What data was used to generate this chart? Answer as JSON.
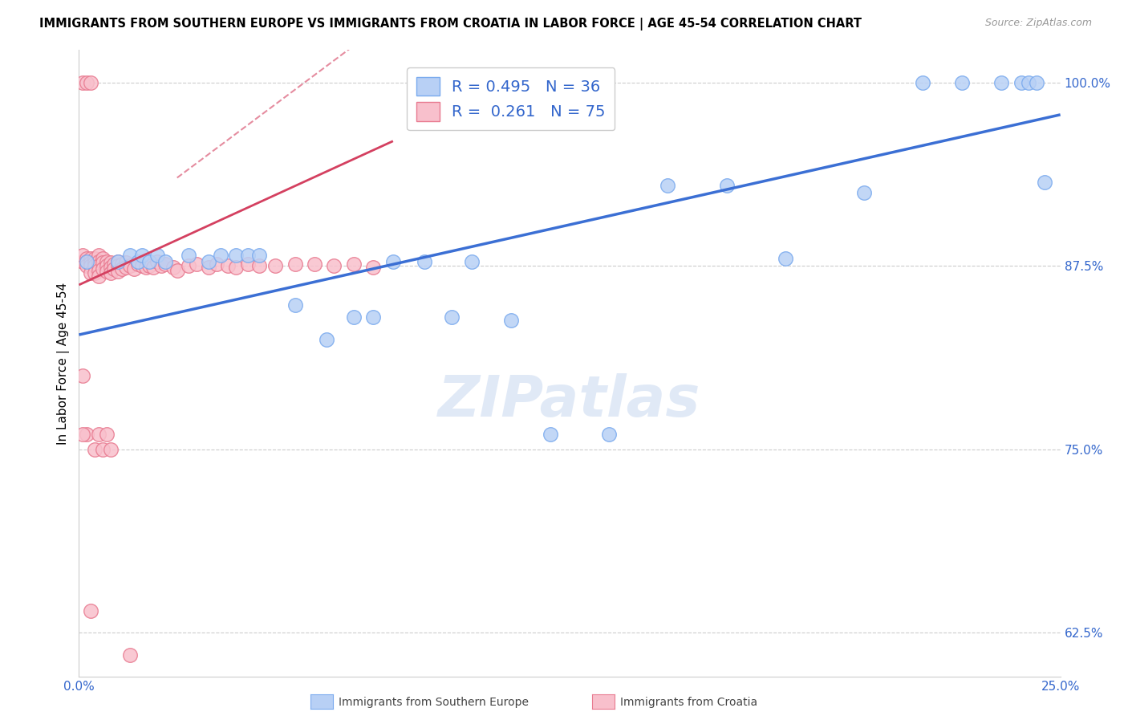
{
  "title": "IMMIGRANTS FROM SOUTHERN EUROPE VS IMMIGRANTS FROM CROATIA IN LABOR FORCE | AGE 45-54 CORRELATION CHART",
  "source": "Source: ZipAtlas.com",
  "ylabel": "In Labor Force | Age 45-54",
  "xmin": 0.0,
  "xmax": 0.25,
  "ymin": 0.595,
  "ymax": 1.022,
  "yticks": [
    0.625,
    0.75,
    0.875,
    1.0
  ],
  "ytick_labels": [
    "62.5%",
    "75.0%",
    "87.5%",
    "100.0%"
  ],
  "xticks": [
    0.0,
    0.05,
    0.1,
    0.15,
    0.2,
    0.25
  ],
  "xtick_labels": [
    "0.0%",
    "",
    "",
    "",
    "",
    "25.0%"
  ],
  "legend_blue_r": "R = 0.495",
  "legend_blue_n": "N = 36",
  "legend_pink_r": "R =  0.261",
  "legend_pink_n": "N = 75",
  "legend_blue_label": "Immigrants from Southern Europe",
  "legend_pink_label": "Immigrants from Croatia",
  "blue_dot_color": "#b8d0f5",
  "blue_edge_color": "#7aaaee",
  "pink_dot_color": "#f8c0cc",
  "pink_edge_color": "#e87a90",
  "blue_line_color": "#3b6fd4",
  "pink_line_color": "#d44060",
  "grid_color": "#cccccc",
  "background_color": "#ffffff",
  "watermark": "ZIPatlas",
  "watermark_color": "#c8d8f0",
  "blue_line_x0": 0.0,
  "blue_line_y0": 0.828,
  "blue_line_x1": 0.25,
  "blue_line_y1": 0.978,
  "pink_line_x0": 0.0,
  "pink_line_y0": 0.862,
  "pink_line_x1": 0.08,
  "pink_line_y1": 0.96,
  "blue_x": [
    0.002,
    0.01,
    0.013,
    0.015,
    0.016,
    0.018,
    0.02,
    0.022,
    0.028,
    0.033,
    0.036,
    0.04,
    0.043,
    0.046,
    0.055,
    0.063,
    0.07,
    0.075,
    0.08,
    0.088,
    0.095,
    0.1,
    0.11,
    0.12,
    0.135,
    0.15,
    0.165,
    0.18,
    0.2,
    0.215,
    0.225,
    0.235,
    0.24,
    0.242,
    0.244,
    0.246
  ],
  "blue_y": [
    0.878,
    0.878,
    0.882,
    0.878,
    0.882,
    0.878,
    0.882,
    0.878,
    0.882,
    0.878,
    0.882,
    0.882,
    0.882,
    0.882,
    0.848,
    0.825,
    0.84,
    0.84,
    0.878,
    0.878,
    0.84,
    0.878,
    0.838,
    0.76,
    0.76,
    0.93,
    0.93,
    0.88,
    0.925,
    1.0,
    1.0,
    1.0,
    1.0,
    1.0,
    1.0,
    0.932
  ],
  "pink_x": [
    0.001,
    0.001,
    0.001,
    0.002,
    0.002,
    0.002,
    0.002,
    0.003,
    0.003,
    0.003,
    0.003,
    0.003,
    0.004,
    0.004,
    0.004,
    0.004,
    0.005,
    0.005,
    0.005,
    0.005,
    0.005,
    0.006,
    0.006,
    0.006,
    0.007,
    0.007,
    0.007,
    0.008,
    0.008,
    0.008,
    0.009,
    0.009,
    0.01,
    0.01,
    0.01,
    0.011,
    0.011,
    0.012,
    0.012,
    0.013,
    0.014,
    0.015,
    0.016,
    0.017,
    0.018,
    0.019,
    0.02,
    0.021,
    0.022,
    0.024,
    0.025,
    0.028,
    0.03,
    0.033,
    0.035,
    0.038,
    0.04,
    0.043,
    0.046,
    0.05,
    0.055,
    0.06,
    0.065,
    0.07,
    0.075,
    0.013,
    0.003,
    0.002,
    0.001,
    0.001,
    0.004,
    0.005,
    0.006,
    0.007,
    0.008
  ],
  "pink_y": [
    0.878,
    0.882,
    1.0,
    0.88,
    0.878,
    0.875,
    1.0,
    0.88,
    0.877,
    0.875,
    0.87,
    1.0,
    0.88,
    0.877,
    0.875,
    0.87,
    0.882,
    0.878,
    0.875,
    0.872,
    0.868,
    0.88,
    0.877,
    0.873,
    0.878,
    0.875,
    0.871,
    0.877,
    0.874,
    0.87,
    0.876,
    0.873,
    0.878,
    0.875,
    0.871,
    0.876,
    0.873,
    0.877,
    0.874,
    0.875,
    0.873,
    0.876,
    0.875,
    0.874,
    0.875,
    0.874,
    0.878,
    0.875,
    0.876,
    0.874,
    0.872,
    0.875,
    0.876,
    0.874,
    0.876,
    0.875,
    0.874,
    0.876,
    0.875,
    0.875,
    0.876,
    0.876,
    0.875,
    0.876,
    0.874,
    0.61,
    0.64,
    0.76,
    0.8,
    0.76,
    0.75,
    0.76,
    0.75,
    0.76,
    0.75
  ]
}
